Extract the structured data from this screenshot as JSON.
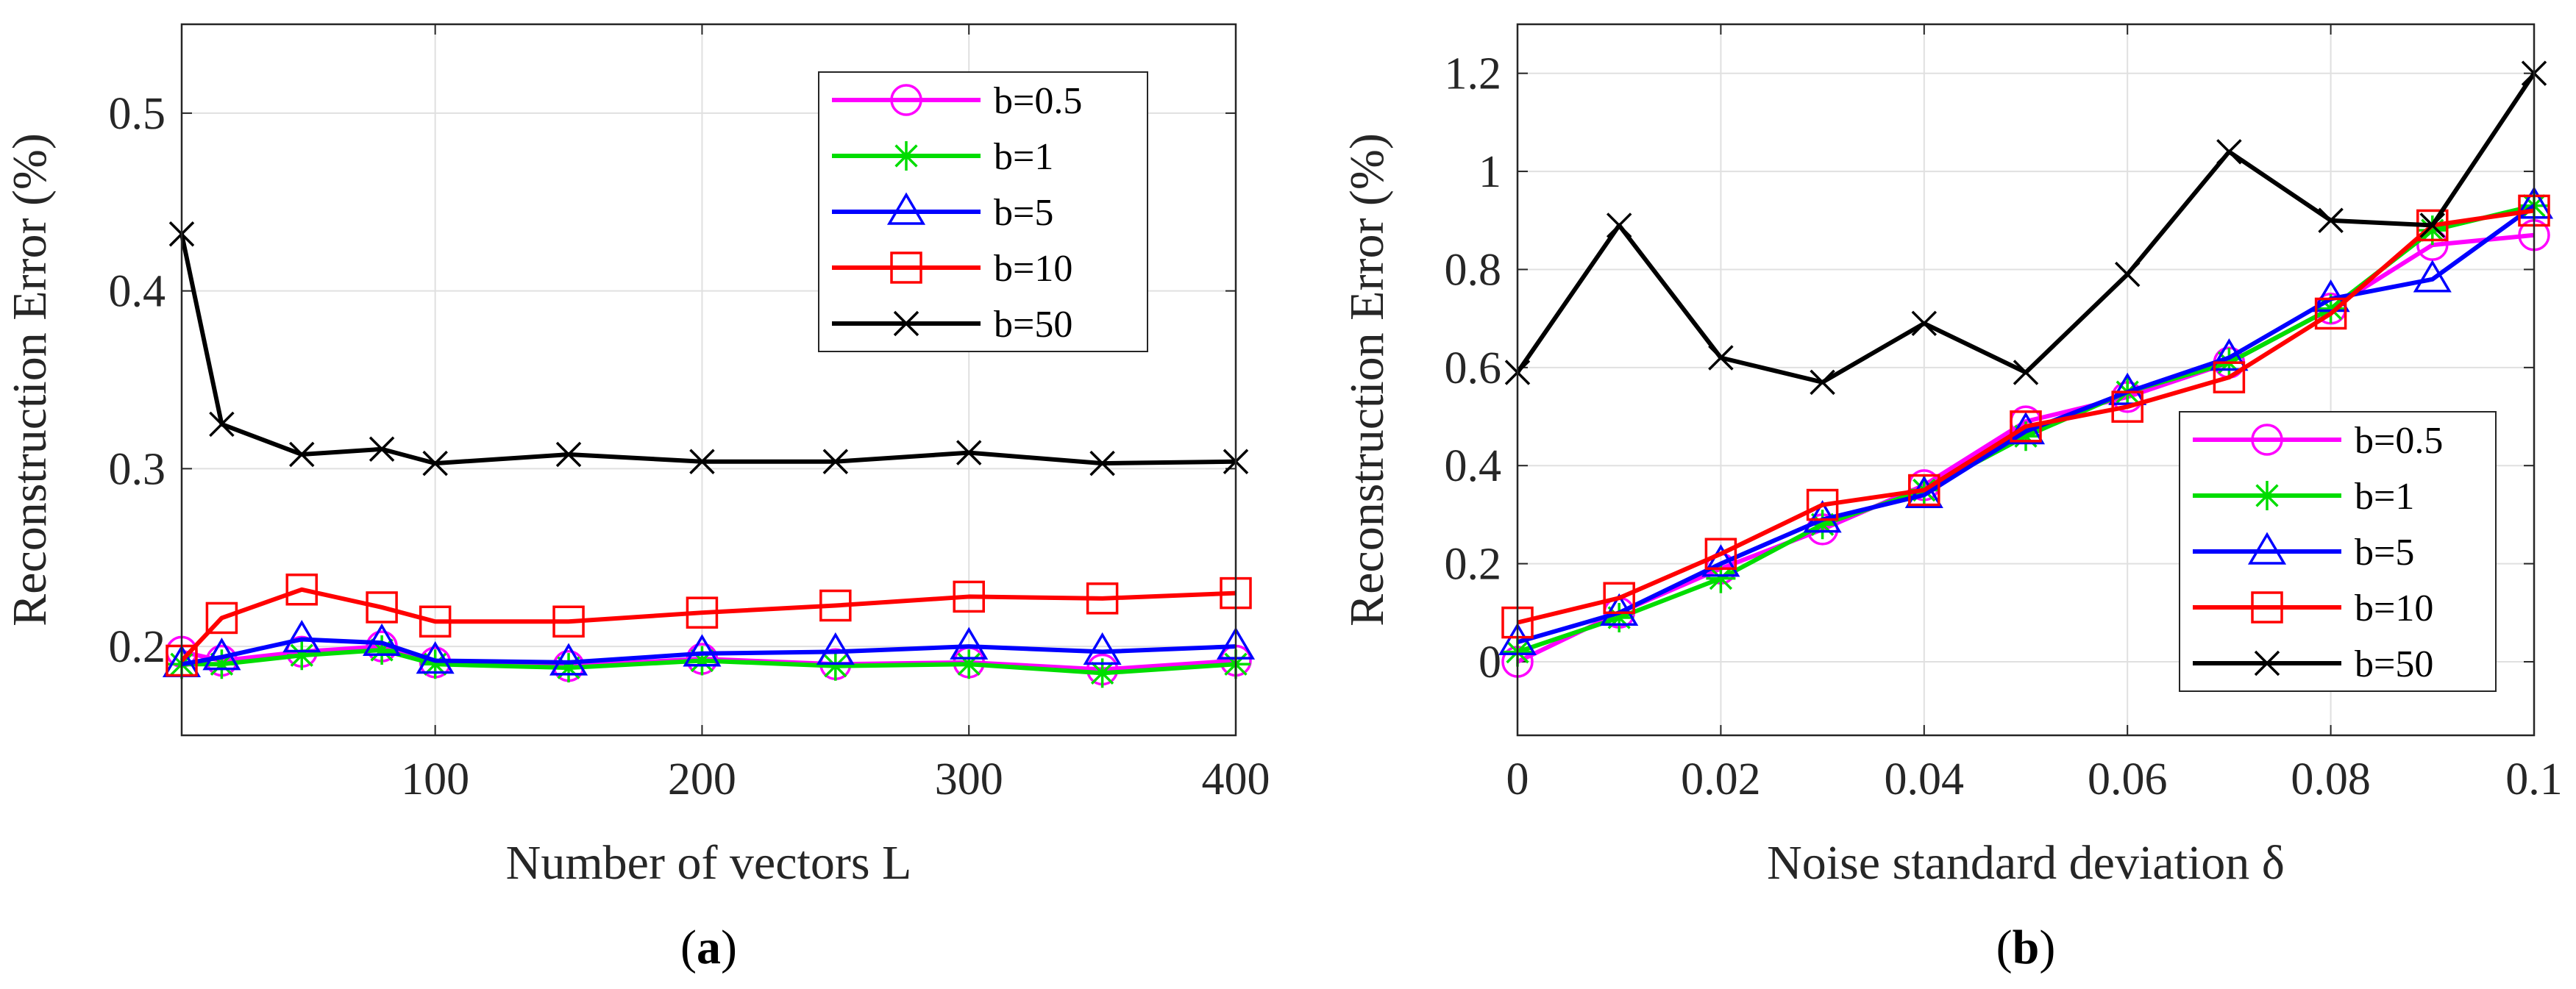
{
  "colors": {
    "b=0.5": "#ff00ff",
    "b=1": "#00dd00",
    "b=5": "#0000ff",
    "b=10": "#ff0000",
    "b=50": "#000000"
  },
  "chart_data": [
    {
      "type": "line",
      "panel": "a",
      "caption": [
        "(",
        "a",
        ")"
      ],
      "xlabel": "Number of vectors L",
      "ylabel": "Reconstruction Error (%)",
      "xlim": [
        5,
        400
      ],
      "ylim": [
        0.15,
        0.55
      ],
      "xticks": [
        100,
        200,
        300,
        400
      ],
      "xtick_labels": [
        "100",
        "200",
        "300",
        "400"
      ],
      "yticks": [
        0.2,
        0.3,
        0.4,
        0.5
      ],
      "ytick_labels": [
        "0.2",
        "0.3",
        "0.4",
        "0.5"
      ],
      "grid": true,
      "legend_position": "top-right",
      "x": [
        5,
        20,
        50,
        80,
        100,
        150,
        200,
        250,
        300,
        350,
        400
      ],
      "series": [
        {
          "name": "b=0.5",
          "marker": "circle",
          "values": [
            0.197,
            0.192,
            0.197,
            0.2,
            0.191,
            0.189,
            0.193,
            0.19,
            0.191,
            0.187,
            0.192
          ]
        },
        {
          "name": "b=1",
          "marker": "star",
          "values": [
            0.19,
            0.19,
            0.195,
            0.198,
            0.19,
            0.188,
            0.192,
            0.189,
            0.19,
            0.185,
            0.19
          ]
        },
        {
          "name": "b=5",
          "marker": "triangle",
          "values": [
            0.19,
            0.194,
            0.204,
            0.202,
            0.192,
            0.191,
            0.196,
            0.197,
            0.2,
            0.197,
            0.2
          ]
        },
        {
          "name": "b=10",
          "marker": "square",
          "values": [
            0.192,
            0.216,
            0.232,
            0.222,
            0.214,
            0.214,
            0.219,
            0.223,
            0.228,
            0.227,
            0.23
          ]
        },
        {
          "name": "b=50",
          "marker": "x",
          "values": [
            0.432,
            0.325,
            0.308,
            0.311,
            0.303,
            0.308,
            0.304,
            0.304,
            0.309,
            0.303,
            0.304
          ]
        }
      ]
    },
    {
      "type": "line",
      "panel": "b",
      "caption": [
        "(",
        "b",
        ")"
      ],
      "xlabel": "Noise standard deviation δ",
      "ylabel": "Reconstruction Error (%)",
      "xlim": [
        0,
        0.1
      ],
      "ylim": [
        -0.15,
        1.3
      ],
      "xticks": [
        0,
        0.02,
        0.04,
        0.06,
        0.08,
        0.1
      ],
      "xtick_labels": [
        "0",
        "0.02",
        "0.04",
        "0.06",
        "0.08",
        "0.1"
      ],
      "yticks": [
        0,
        0.2,
        0.4,
        0.6,
        0.8,
        1,
        1.2
      ],
      "ytick_labels": [
        "0",
        "0.2",
        "0.4",
        "0.6",
        "0.8",
        "1",
        "1.2"
      ],
      "grid": true,
      "legend_position": "bottom-right",
      "x": [
        0,
        0.01,
        0.02,
        0.03,
        0.04,
        0.05,
        0.06,
        0.07,
        0.08,
        0.09,
        0.1
      ],
      "series": [
        {
          "name": "b=0.5",
          "marker": "circle",
          "values": [
            0.0,
            0.1,
            0.19,
            0.27,
            0.36,
            0.49,
            0.54,
            0.61,
            0.72,
            0.85,
            0.87
          ]
        },
        {
          "name": "b=1",
          "marker": "star",
          "values": [
            0.02,
            0.09,
            0.17,
            0.28,
            0.35,
            0.46,
            0.55,
            0.61,
            0.72,
            0.88,
            0.93
          ]
        },
        {
          "name": "b=5",
          "marker": "triangle",
          "values": [
            0.04,
            0.1,
            0.2,
            0.29,
            0.34,
            0.47,
            0.55,
            0.62,
            0.74,
            0.78,
            0.93
          ]
        },
        {
          "name": "b=10",
          "marker": "square",
          "values": [
            0.08,
            0.13,
            0.22,
            0.32,
            0.35,
            0.48,
            0.52,
            0.58,
            0.71,
            0.89,
            0.92
          ]
        },
        {
          "name": "b=50",
          "marker": "x",
          "values": [
            0.59,
            0.89,
            0.62,
            0.57,
            0.69,
            0.59,
            0.79,
            1.04,
            0.9,
            0.89,
            1.2
          ]
        }
      ]
    }
  ]
}
